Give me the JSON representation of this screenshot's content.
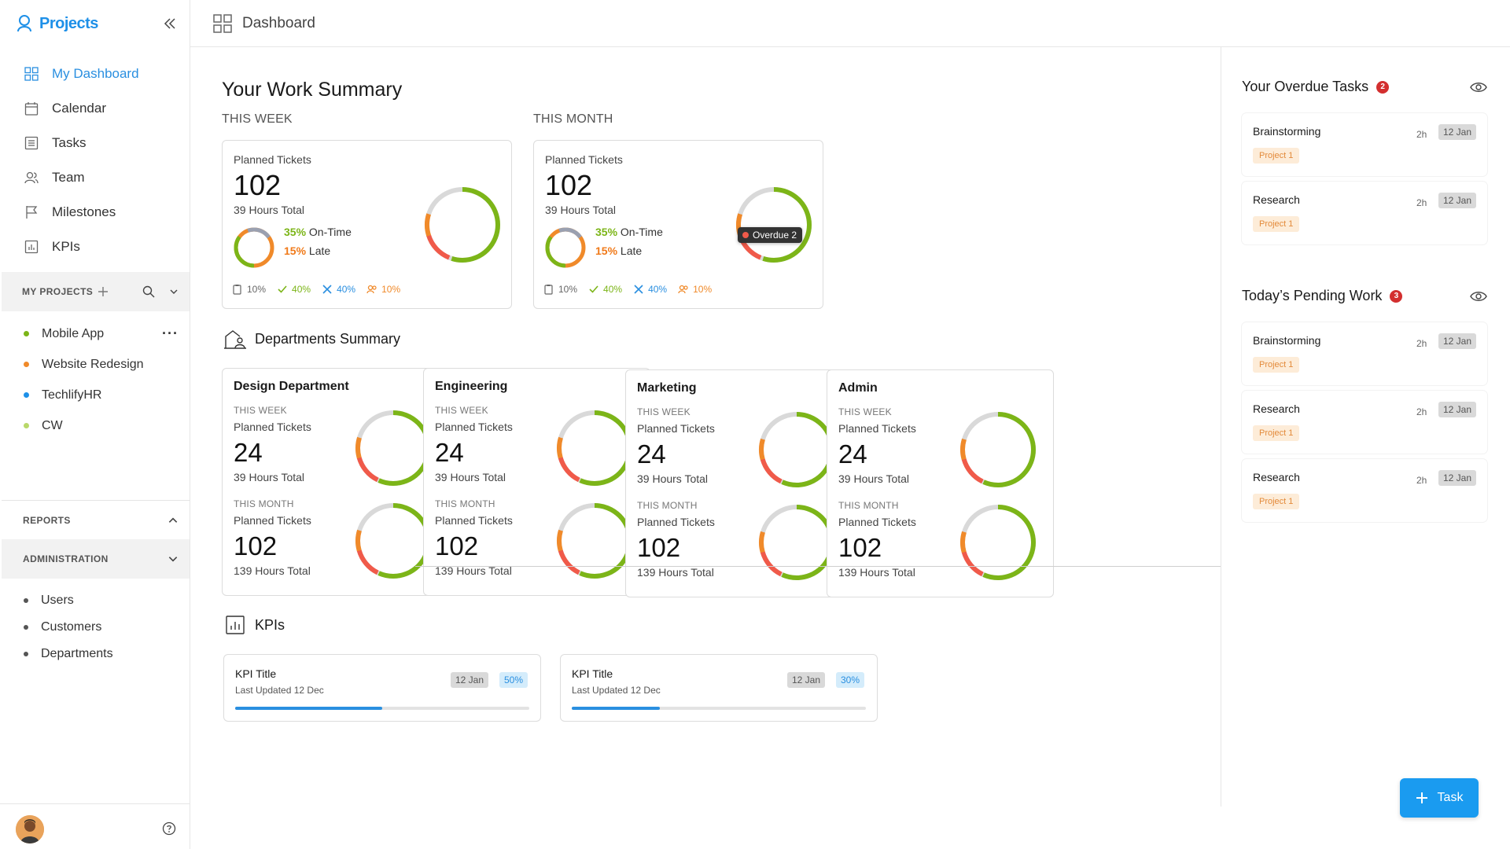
{
  "app": {
    "brand": "Projects"
  },
  "header": {
    "title": "Dashboard"
  },
  "nav": [
    {
      "label": "My Dashboard",
      "icon": "dashboard-icon",
      "active": true
    },
    {
      "label": "Calendar",
      "icon": "calendar-icon"
    },
    {
      "label": "Tasks",
      "icon": "tasks-icon"
    },
    {
      "label": "Team",
      "icon": "team-icon"
    },
    {
      "label": "Milestones",
      "icon": "flag-icon"
    },
    {
      "label": "KPIs",
      "icon": "chart-icon"
    }
  ],
  "my_projects": {
    "title": "MY PROJECTS",
    "items": [
      {
        "label": "Mobile App",
        "color": "#7cb518"
      },
      {
        "label": "Website Redesign",
        "color": "#f08a2a"
      },
      {
        "label": "TechlifyHR",
        "color": "#1e90e8"
      },
      {
        "label": "CW",
        "color": "#b9d86a"
      }
    ]
  },
  "reports": {
    "title": "REPORTS"
  },
  "administration": {
    "title": "ADMINISTRATION",
    "items": [
      {
        "label": "Users"
      },
      {
        "label": "Customers"
      },
      {
        "label": "Departments"
      }
    ]
  },
  "summary": {
    "title": "Your Work Summary",
    "week": {
      "period": "THIS WEEK",
      "label": "Planned Tickets",
      "value": "102",
      "hours": "39 Hours Total",
      "ontime_pct": "35%",
      "ontime_label": "On-Time",
      "late_pct": "15%",
      "late_label": "Late",
      "icons": [
        "10%",
        "40%",
        "40%",
        "10%"
      ]
    },
    "month": {
      "period": "THIS MONTH",
      "label": "Planned Tickets",
      "value": "102",
      "hours": "39 Hours Total",
      "ontime_pct": "35%",
      "ontime_label": "On-Time",
      "late_pct": "15%",
      "late_label": "Late",
      "icons": [
        "10%",
        "40%",
        "40%",
        "10%"
      ],
      "tooltip": "Overdue 2"
    }
  },
  "departments": {
    "title": "Departments Summary",
    "items": [
      {
        "name": "Design Department",
        "week_cap": "THIS WEEK",
        "week_label": "Planned Tickets",
        "week_value": "24",
        "week_hours": "39 Hours Total",
        "month_cap": "THIS MONTH",
        "month_label": "Planned Tickets",
        "month_value": "102",
        "month_hours": "139 Hours Total"
      },
      {
        "name": "Engineering",
        "week_cap": "THIS WEEK",
        "week_label": "Planned Tickets",
        "week_value": "24",
        "week_hours": "39 Hours Total",
        "month_cap": "THIS MONTH",
        "month_label": "Planned Tickets",
        "month_value": "102",
        "month_hours": "139 Hours Total"
      },
      {
        "name": "Marketing",
        "week_cap": "THIS WEEK",
        "week_label": "Planned Tickets",
        "week_value": "24",
        "week_hours": "39 Hours Total",
        "month_cap": "THIS MONTH",
        "month_label": "Planned Tickets",
        "month_value": "102",
        "month_hours": "139 Hours Total"
      },
      {
        "name": "Admin",
        "week_cap": "THIS WEEK",
        "week_label": "Planned Tickets",
        "week_value": "24",
        "week_hours": "39 Hours Total",
        "month_cap": "THIS MONTH",
        "month_label": "Planned Tickets",
        "month_value": "102",
        "month_hours": "139 Hours Total"
      }
    ]
  },
  "kpis": {
    "title": "KPIs",
    "items": [
      {
        "title": "KPI Title",
        "subtitle": "Last Updated 12 Dec",
        "date": "12 Jan",
        "pct": "50%",
        "progress": 0.5
      },
      {
        "title": "KPI Title",
        "subtitle": "Last Updated 12 Dec",
        "date": "12 Jan",
        "pct": "30%",
        "progress": 0.3
      }
    ]
  },
  "overdue": {
    "title": "Your Overdue Tasks",
    "count": "2",
    "tasks": [
      {
        "name": "Brainstorming",
        "hours": "2h",
        "date": "12 Jan",
        "project": "Project 1"
      },
      {
        "name": "Research",
        "hours": "2h",
        "date": "12 Jan",
        "project": "Project 1"
      }
    ]
  },
  "pending": {
    "title": "Today’s Pending Work",
    "count": "3",
    "tasks": [
      {
        "name": "Brainstorming",
        "hours": "2h",
        "date": "12 Jan",
        "project": "Project 1"
      },
      {
        "name": "Research",
        "hours": "2h",
        "date": "12 Jan",
        "project": "Project 1"
      },
      {
        "name": "Research",
        "hours": "2h",
        "date": "12 Jan",
        "project": "Project 1"
      }
    ]
  },
  "fab": {
    "label": "Task"
  },
  "colors": {
    "accent": "#1e90e8",
    "green": "#7cb518",
    "orange": "#f08a2a",
    "red": "#f05a4a",
    "grey": "#d9d9d9"
  }
}
